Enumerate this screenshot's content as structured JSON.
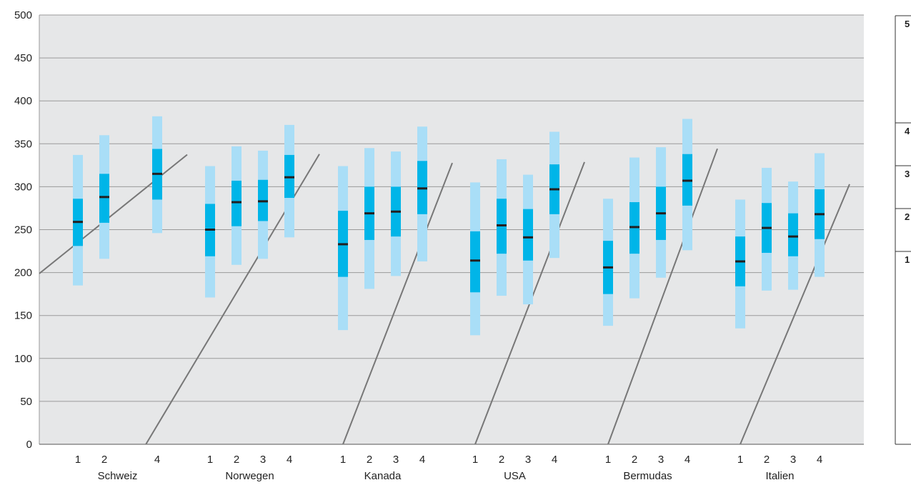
{
  "chart_data": {
    "type": "box",
    "ylim": [
      0,
      500
    ],
    "yticks": [
      "0",
      "50",
      "100",
      "150",
      "200",
      "250",
      "300",
      "350",
      "400",
      "450",
      "500"
    ],
    "grid": true,
    "colors": {
      "plot_bg": "#e6e7e8",
      "grid": "#9a9a9a",
      "outer_range": "#a9def7",
      "inner_range": "#00b5e8",
      "median": "#231f20",
      "trend": "#777777"
    },
    "groups": [
      {
        "name": "Schweiz",
        "levels": [
          {
            "label": "1",
            "p5": 185,
            "p25": 231,
            "mean": 259,
            "p75": 286,
            "p95": 337
          },
          {
            "label": "2",
            "p5": 216,
            "p25": 258,
            "mean": 288,
            "p75": 315,
            "p95": 360
          },
          {
            "label": "4",
            "p5": 246,
            "p25": 285,
            "mean": 315,
            "p75": 344,
            "p95": 382
          }
        ],
        "trend": [
          [
            1,
            235
          ],
          [
            5,
            334
          ]
        ]
      },
      {
        "name": "Norwegen",
        "levels": [
          {
            "label": "1",
            "p5": 171,
            "p25": 219,
            "mean": 250,
            "p75": 280,
            "p95": 324
          },
          {
            "label": "2",
            "p5": 209,
            "p25": 254,
            "mean": 282,
            "p75": 307,
            "p95": 347
          },
          {
            "label": "3",
            "p5": 216,
            "p25": 260,
            "mean": 283,
            "p75": 308,
            "p95": 342
          },
          {
            "label": "4",
            "p5": 241,
            "p25": 287,
            "mean": 311,
            "p75": 337,
            "p95": 372
          }
        ],
        "trend": [
          [
            1,
            125
          ],
          [
            5,
            331
          ]
        ]
      },
      {
        "name": "Kanada",
        "levels": [
          {
            "label": "1",
            "p5": 133,
            "p25": 195,
            "mean": 233,
            "p75": 272,
            "p95": 324
          },
          {
            "label": "2",
            "p5": 181,
            "p25": 238,
            "mean": 269,
            "p75": 300,
            "p95": 345
          },
          {
            "label": "3",
            "p5": 196,
            "p25": 242,
            "mean": 271,
            "p75": 300,
            "p95": 341
          },
          {
            "label": "4",
            "p5": 213,
            "p25": 268,
            "mean": 298,
            "p75": 330,
            "p95": 370
          }
        ],
        "trend": [
          [
            1,
            0
          ],
          [
            5,
            317
          ]
        ]
      },
      {
        "name": "USA",
        "levels": [
          {
            "label": "1",
            "p5": 127,
            "p25": 177,
            "mean": 214,
            "p75": 248,
            "p95": 305
          },
          {
            "label": "2",
            "p5": 173,
            "p25": 222,
            "mean": 255,
            "p75": 286,
            "p95": 332
          },
          {
            "label": "3",
            "p5": 163,
            "p25": 214,
            "mean": 241,
            "p75": 274,
            "p95": 314
          },
          {
            "label": "4",
            "p5": 217,
            "p25": 268,
            "mean": 297,
            "p75": 326,
            "p95": 364
          }
        ],
        "trend": [
          [
            1,
            0
          ],
          [
            5,
            318
          ]
        ]
      },
      {
        "name": "Bermudas",
        "levels": [
          {
            "label": "1",
            "p5": 138,
            "p25": 175,
            "mean": 206,
            "p75": 237,
            "p95": 286
          },
          {
            "label": "2",
            "p5": 170,
            "p25": 222,
            "mean": 253,
            "p75": 282,
            "p95": 334
          },
          {
            "label": "3",
            "p5": 194,
            "p25": 238,
            "mean": 269,
            "p75": 300,
            "p95": 346
          },
          {
            "label": "4",
            "p5": 226,
            "p25": 278,
            "mean": 307,
            "p75": 338,
            "p95": 379
          }
        ],
        "trend": [
          [
            1,
            0
          ],
          [
            5,
            333
          ]
        ]
      },
      {
        "name": "Italien",
        "levels": [
          {
            "label": "1",
            "p5": 135,
            "p25": 184,
            "mean": 213,
            "p75": 242,
            "p95": 285
          },
          {
            "label": "2",
            "p5": 179,
            "p25": 223,
            "mean": 252,
            "p75": 281,
            "p95": 322
          },
          {
            "label": "3",
            "p5": 180,
            "p25": 219,
            "mean": 242,
            "p75": 269,
            "p95": 306
          },
          {
            "label": "4",
            "p5": 195,
            "p25": 239,
            "mean": 268,
            "p75": 297,
            "p95": 339
          }
        ],
        "trend": [
          [
            1,
            0
          ],
          [
            5,
            293
          ]
        ]
      }
    ],
    "side_legend": {
      "levels": [
        "5",
        "4",
        "3",
        "2",
        "1"
      ]
    }
  }
}
